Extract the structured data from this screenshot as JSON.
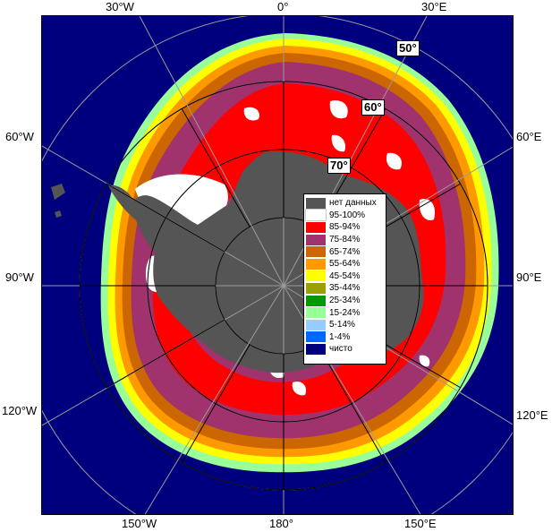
{
  "map": {
    "title": "",
    "longitude_labels": {
      "top": [
        "30°W",
        "0°",
        "30°E"
      ],
      "left": [
        "60°W",
        "90°W",
        "120°W"
      ],
      "right": [
        "60°E",
        "90°E",
        "120°E"
      ],
      "bottom": [
        "150°W",
        "180°",
        "150°E"
      ]
    },
    "latitude_labels": [
      "50°",
      "60°",
      "70°"
    ],
    "colors": {
      "ocean": "#00007f",
      "land": "#555555",
      "graticule": "#9a9a9a"
    }
  },
  "legend": {
    "items": [
      {
        "label": "нет данных",
        "color": "#555555"
      },
      {
        "label": "95-100%",
        "color": "#ffffff"
      },
      {
        "label": "85-94%",
        "color": "#ff0000"
      },
      {
        "label": "75-84%",
        "color": "#a0336e"
      },
      {
        "label": "65-74%",
        "color": "#cc6600"
      },
      {
        "label": "55-64%",
        "color": "#ff9900"
      },
      {
        "label": "45-54%",
        "color": "#ffff00"
      },
      {
        "label": "35-44%",
        "color": "#99a000"
      },
      {
        "label": "25-34%",
        "color": "#009900"
      },
      {
        "label": "15-24%",
        "color": "#99ff99"
      },
      {
        "label": "5-14%",
        "color": "#99ccff"
      },
      {
        "label": "1-4%",
        "color": "#0066ff"
      },
      {
        "label": "чисто",
        "color": "#00007f"
      }
    ]
  }
}
